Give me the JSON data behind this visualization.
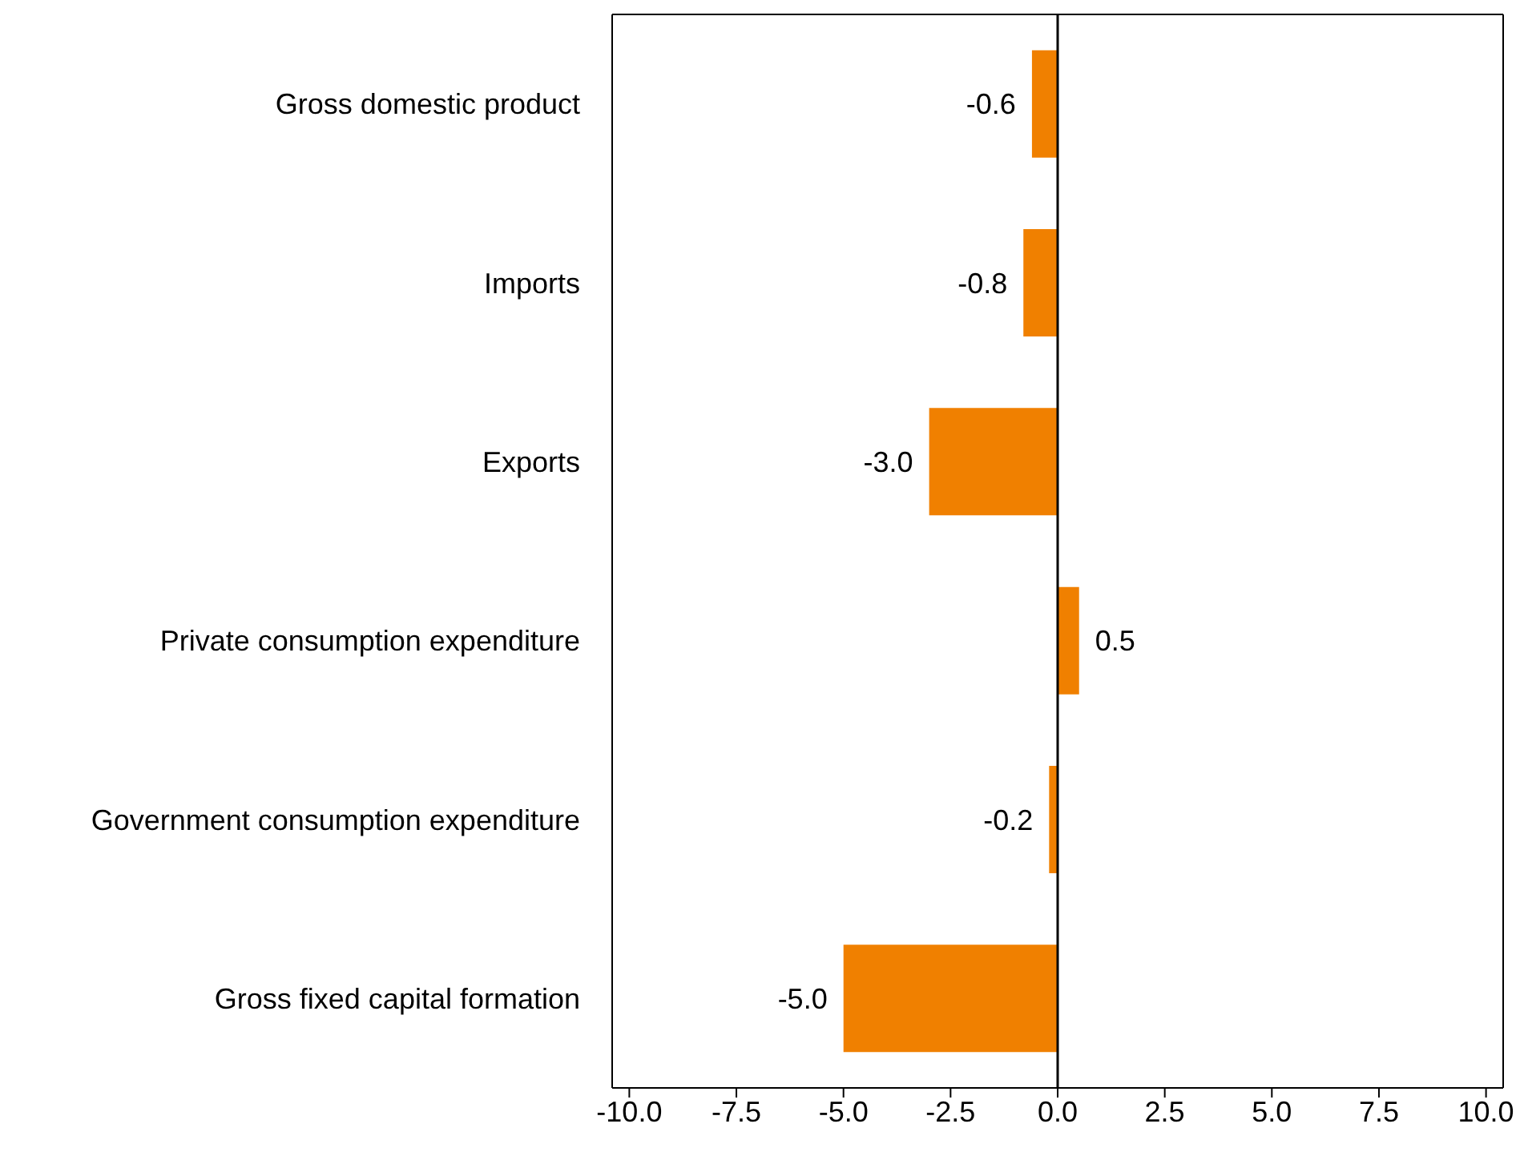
{
  "chart_data": {
    "type": "bar",
    "orientation": "horizontal",
    "categories": [
      "Gross domestic product",
      "Imports",
      "Exports",
      "Private consumption expenditure",
      "Government consumption expenditure",
      "Gross fixed capital formation"
    ],
    "values": [
      -0.6,
      -0.8,
      -3.0,
      0.5,
      -0.2,
      -5.0
    ],
    "value_labels": [
      "-0.6",
      "-0.8",
      "-3.0",
      "0.5",
      "-0.2",
      "-5.0"
    ],
    "color": "#f08000",
    "xlim": [
      -10.4,
      10.4
    ],
    "xticks": [
      {
        "value": -10,
        "label": "-10.0"
      },
      {
        "value": -7.5,
        "label": "-7.5"
      },
      {
        "value": -5,
        "label": "-5.0"
      },
      {
        "value": -2.5,
        "label": "-2.5"
      },
      {
        "value": 0,
        "label": "0.0"
      },
      {
        "value": 2.5,
        "label": "2.5"
      },
      {
        "value": 5,
        "label": "5.0"
      },
      {
        "value": 7.5,
        "label": "7.5"
      },
      {
        "value": 10,
        "label": "10.0"
      }
    ],
    "ref_lines": [
      {
        "axis": "x",
        "value": 0,
        "color": "#000000"
      }
    ],
    "grid": false
  }
}
